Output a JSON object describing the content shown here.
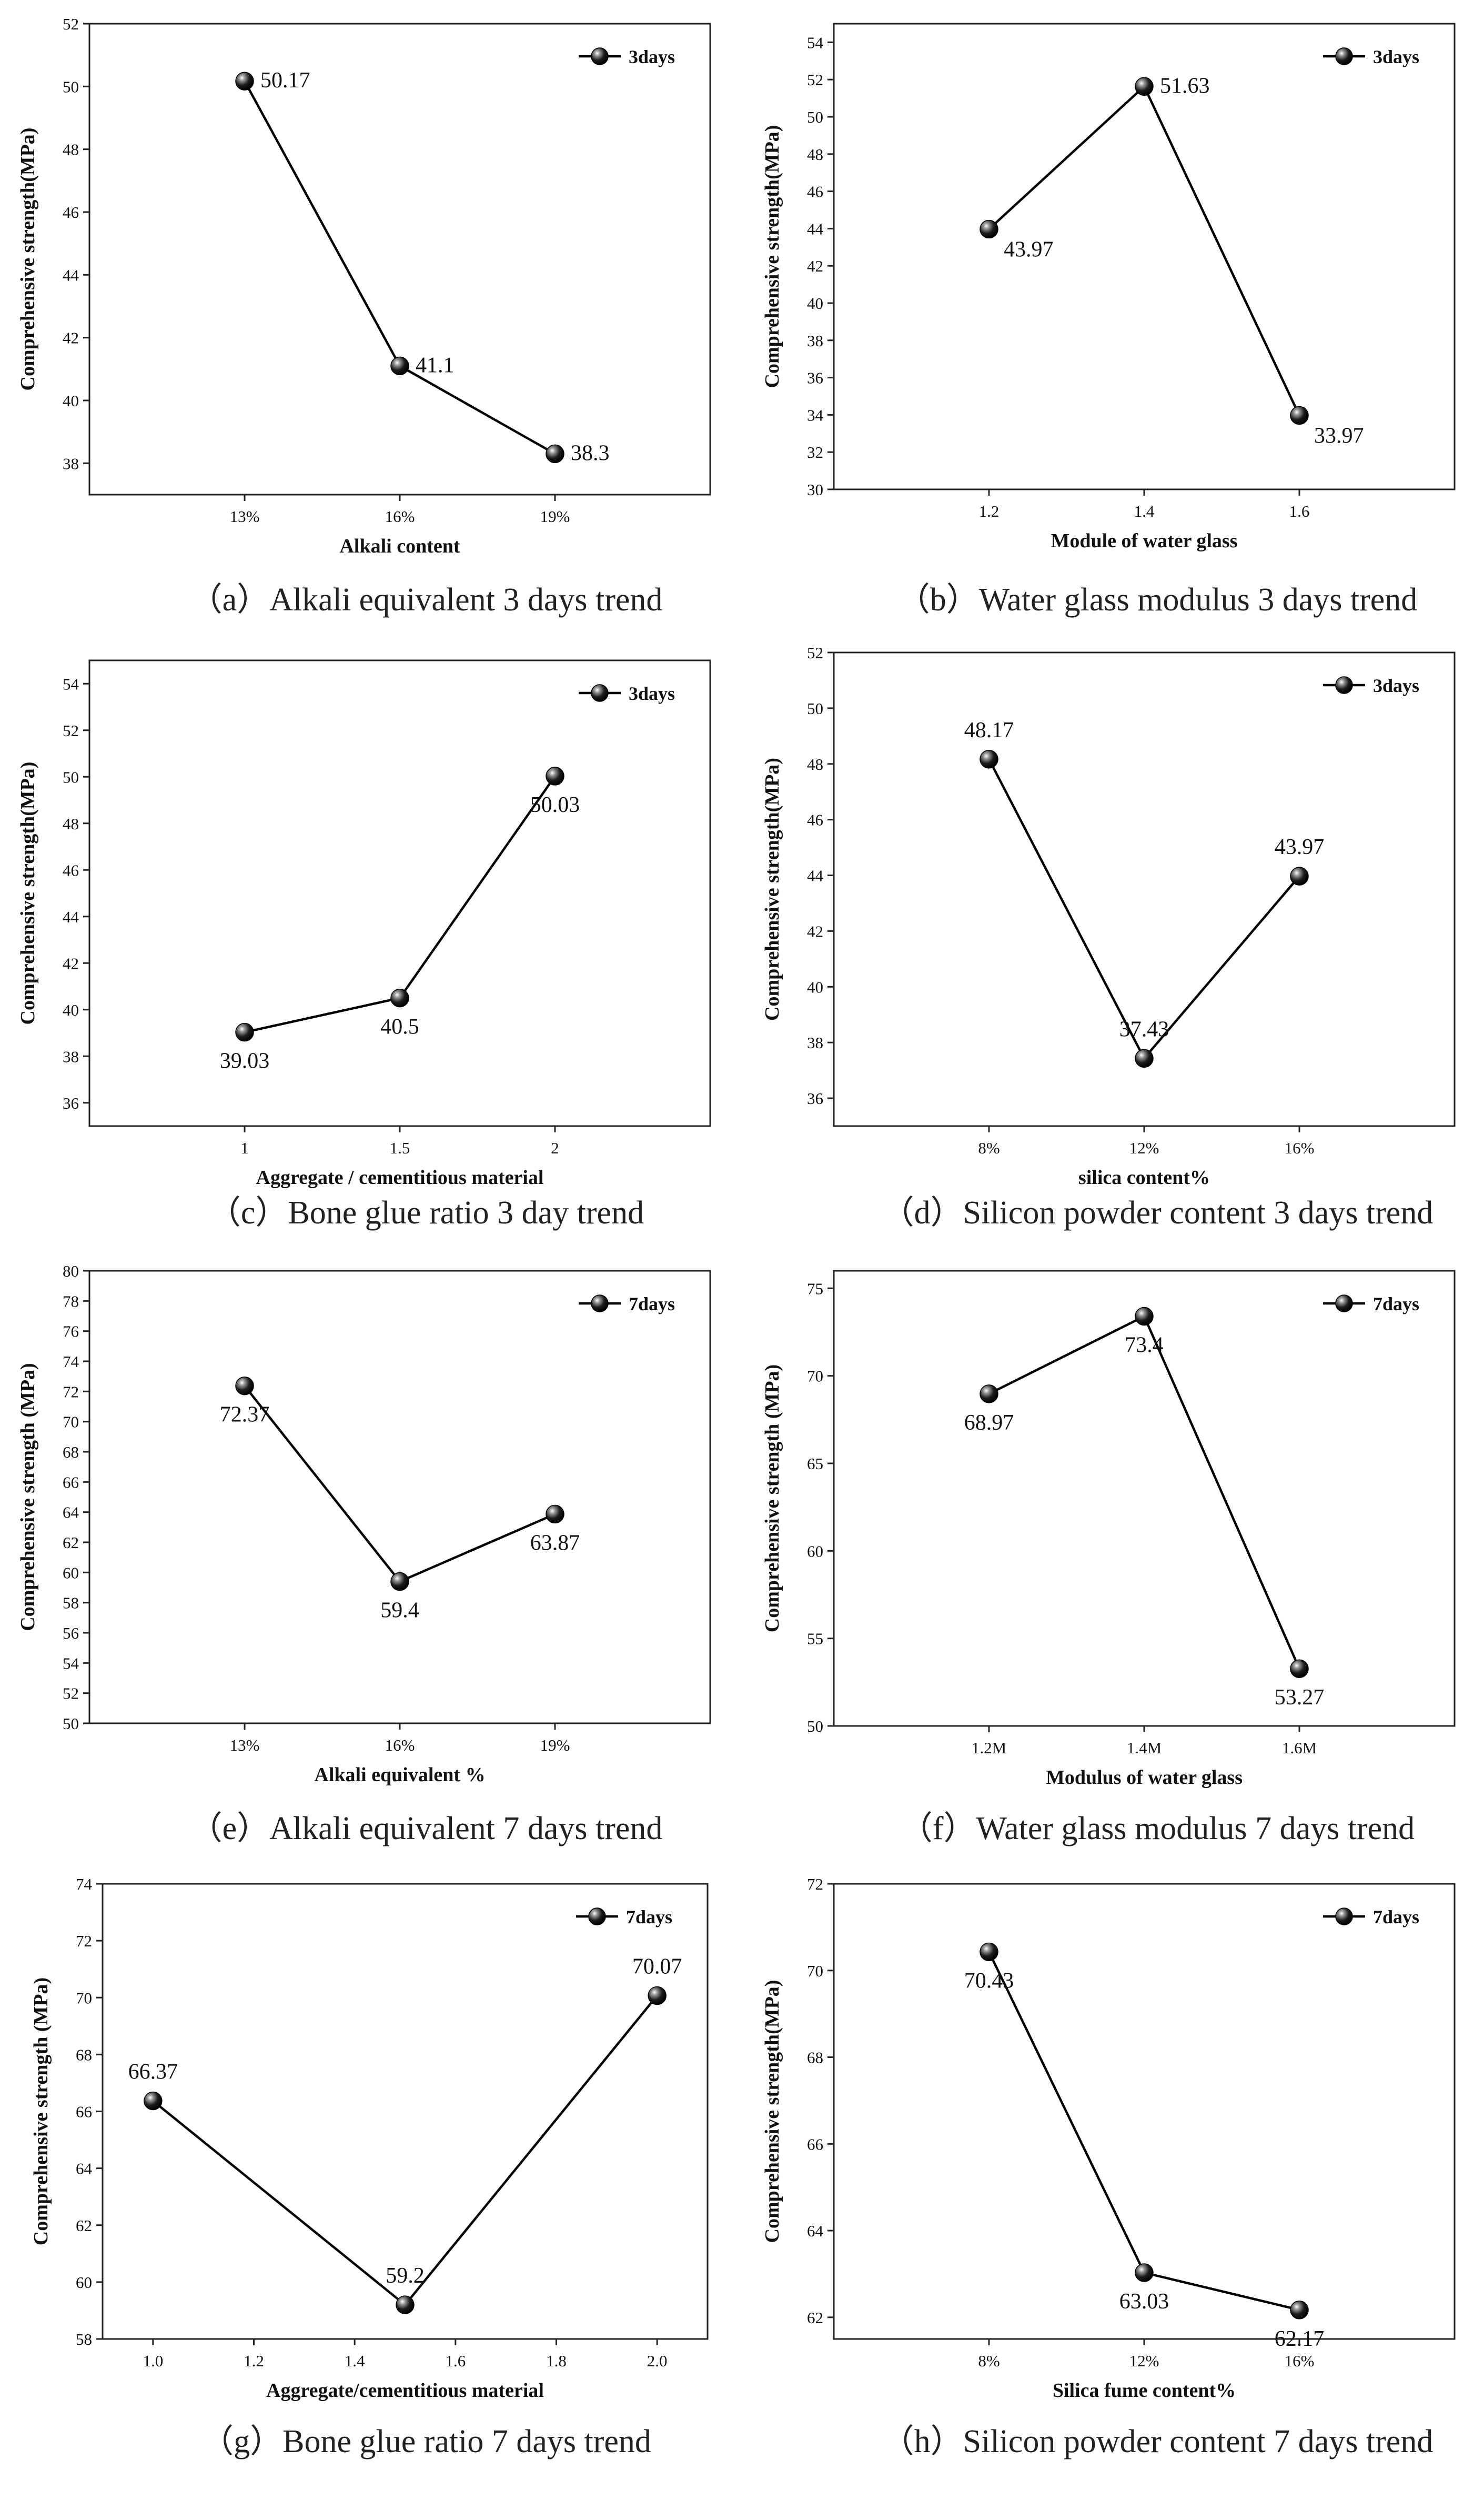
{
  "chart_data": [
    {
      "panel": "a",
      "type": "line",
      "caption": "（a）Alkali equivalent 3 days trend",
      "xlabel": "Alkali content",
      "ylabel": "Comprehensive strength(MPa)",
      "legend": "3days",
      "legend_position": "top-right",
      "x_scale": "category",
      "categories": [
        "13%",
        "16%",
        "19%"
      ],
      "values": [
        50.17,
        41.1,
        38.3
      ],
      "data_labels": [
        "50.17",
        "41.1",
        "38.3"
      ],
      "label_positions": [
        "right",
        "right",
        "right"
      ],
      "ylim": [
        37,
        52
      ],
      "yticks": [
        "38",
        "40",
        "42",
        "44",
        "46",
        "48",
        "50",
        "52"
      ]
    },
    {
      "panel": "b",
      "type": "line",
      "caption": "（b）Water glass modulus 3 days trend",
      "xlabel": "Module of water glass",
      "ylabel": "Comprehensive strength(MPa)",
      "legend": "3days",
      "legend_position": "top-right",
      "x_scale": "category",
      "categories": [
        "1.2",
        "1.4",
        "1.6"
      ],
      "values": [
        43.97,
        51.63,
        33.97
      ],
      "data_labels": [
        "43.97",
        "51.63",
        "33.97"
      ],
      "label_positions": [
        "below-right",
        "right",
        "below-right"
      ],
      "ylim": [
        30,
        55
      ],
      "yticks": [
        "30",
        "32",
        "34",
        "36",
        "38",
        "40",
        "42",
        "44",
        "46",
        "48",
        "50",
        "52",
        "54"
      ]
    },
    {
      "panel": "c",
      "type": "line",
      "caption": "（c）Bone glue ratio 3 day trend",
      "xlabel": "Aggregate / cementitious material",
      "ylabel": "Comprehensive strength(MPa)",
      "legend": "3days",
      "legend_position": "top-right",
      "x_scale": "category",
      "categories": [
        "1",
        "1.5",
        "2"
      ],
      "values": [
        39.03,
        40.5,
        50.03
      ],
      "data_labels": [
        "39.03",
        "40.5",
        "50.03"
      ],
      "label_positions": [
        "below",
        "below",
        "below"
      ],
      "ylim": [
        35,
        55
      ],
      "yticks": [
        "36",
        "38",
        "40",
        "42",
        "44",
        "46",
        "48",
        "50",
        "52",
        "54"
      ]
    },
    {
      "panel": "d",
      "type": "line",
      "caption": "（d）Silicon powder content 3 days trend",
      "xlabel": "silica content%",
      "ylabel": "Comprehensive strength(MPa)",
      "legend": "3days",
      "legend_position": "top-right",
      "x_scale": "category",
      "categories": [
        "8%",
        "12%",
        "16%"
      ],
      "values": [
        48.17,
        37.43,
        43.97
      ],
      "data_labels": [
        "48.17",
        "37.43",
        "43.97"
      ],
      "label_positions": [
        "above",
        "above",
        "above"
      ],
      "ylim": [
        35,
        52
      ],
      "yticks": [
        "36",
        "38",
        "40",
        "42",
        "44",
        "46",
        "48",
        "50",
        "52"
      ]
    },
    {
      "panel": "e",
      "type": "line",
      "caption": "（e）Alkali equivalent 7 days trend",
      "xlabel": "Alkali equivalent %",
      "ylabel": "Comprehensive strength (MPa)",
      "legend": "7days",
      "legend_position": "top-right",
      "x_scale": "category",
      "categories": [
        "13%",
        "16%",
        "19%"
      ],
      "values": [
        72.37,
        59.4,
        63.87
      ],
      "data_labels": [
        "72.37",
        "59.4",
        "63.87"
      ],
      "label_positions": [
        "below",
        "below",
        "below"
      ],
      "ylim": [
        50,
        80
      ],
      "yticks": [
        "50",
        "52",
        "54",
        "56",
        "58",
        "60",
        "62",
        "64",
        "66",
        "68",
        "70",
        "72",
        "74",
        "76",
        "78",
        "80"
      ]
    },
    {
      "panel": "f",
      "type": "line",
      "caption": "（f）Water glass modulus 7 days trend",
      "xlabel": "Modulus of water glass",
      "ylabel": "Comprehensive strength (MPa)",
      "legend": "7days",
      "legend_position": "top-right",
      "x_scale": "category",
      "categories": [
        "1.2M",
        "1.4M",
        "1.6M"
      ],
      "values": [
        68.97,
        73.4,
        53.27
      ],
      "data_labels": [
        "68.97",
        "73.4",
        "53.27"
      ],
      "label_positions": [
        "below",
        "below",
        "below"
      ],
      "ylim": [
        50,
        76
      ],
      "yticks": [
        "50",
        "55",
        "60",
        "65",
        "70",
        "75"
      ]
    },
    {
      "panel": "g",
      "type": "line",
      "caption": "（g）Bone glue ratio 7 days trend",
      "xlabel": "Aggregate/cementitious material",
      "ylabel": "Comprehensive strength (MPa)",
      "legend": "7days",
      "legend_position": "top-right",
      "x_scale": "linear",
      "x": [
        1.0,
        1.5,
        2.0
      ],
      "xlim": [
        0.9,
        2.1
      ],
      "xticks": [
        1.0,
        1.2,
        1.4,
        1.6,
        1.8,
        2.0
      ],
      "xtick_labels": [
        "1.0",
        "1.2",
        "1.4",
        "1.6",
        "1.8",
        "2.0"
      ],
      "values": [
        66.37,
        59.2,
        70.07
      ],
      "data_labels": [
        "66.37",
        "59.2",
        "70.07"
      ],
      "label_positions": [
        "above",
        "above",
        "above"
      ],
      "ylim": [
        58,
        74
      ],
      "yticks": [
        "58",
        "60",
        "62",
        "64",
        "66",
        "68",
        "70",
        "72",
        "74"
      ]
    },
    {
      "panel": "h",
      "type": "line",
      "caption": "（h）Silicon powder content 7 days trend",
      "xlabel": "Silica fume content%",
      "ylabel": "Comprehensive strength(MPa)",
      "legend": "7days",
      "legend_position": "top-right",
      "x_scale": "category",
      "categories": [
        "8%",
        "12%",
        "16%"
      ],
      "values": [
        70.43,
        63.03,
        62.17
      ],
      "data_labels": [
        "70.43",
        "63.03",
        "62.17"
      ],
      "label_positions": [
        "below",
        "below",
        "below"
      ],
      "ylim": [
        61.5,
        72
      ],
      "yticks": [
        "62",
        "64",
        "66",
        "68",
        "70",
        "72"
      ]
    }
  ]
}
